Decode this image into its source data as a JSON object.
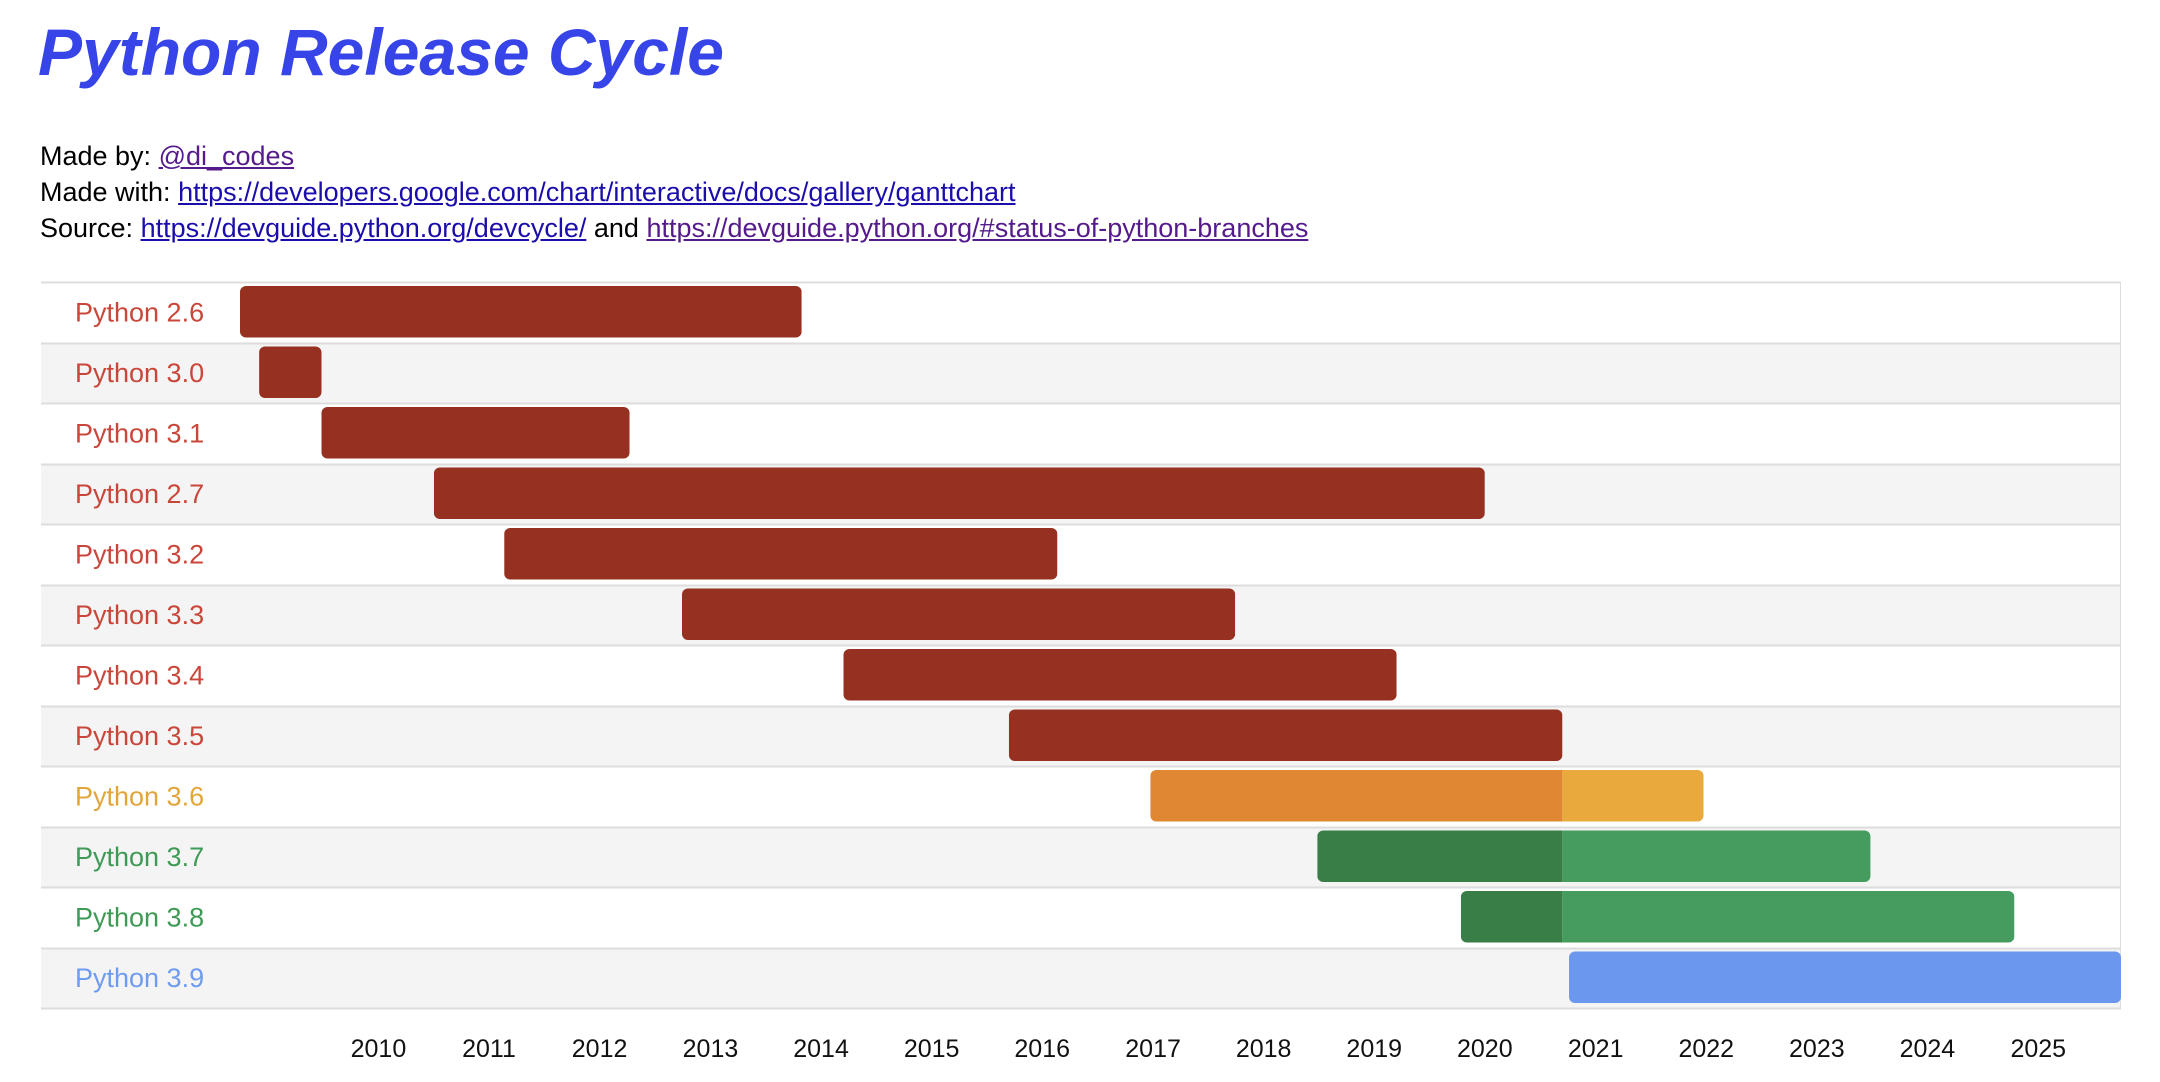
{
  "title": "Python Release Cycle",
  "meta": {
    "made_by_label": "Made by:",
    "made_by_link": "@di_codes",
    "made_with_label": "Made with:",
    "made_with_link": "https://developers.google.com/chart/interactive/docs/gallery/ganttchart",
    "source_label": "Source:",
    "source_link_1": "https://devguide.python.org/devcycle/",
    "source_and": "and",
    "source_link_2": "https://devguide.python.org/#status-of-python-branches"
  },
  "colors": {
    "eol": "#963121",
    "eol_label": "#c9473a",
    "v36_dark": "#e08733",
    "v36_light": "#e9a93c",
    "v36_label": "#e2a53a",
    "green_dark": "#397e46",
    "green_light": "#459c5e",
    "green_label": "#3f9a56",
    "blue": "#6b97ee",
    "blue_label": "#6f9bf0",
    "row_alt": "#f4f4f4",
    "grid": "#dddddd"
  },
  "chart_data": {
    "type": "gantt",
    "x_axis": {
      "ticks": [
        "2010",
        "2011",
        "2012",
        "2013",
        "2014",
        "2015",
        "2016",
        "2017",
        "2018",
        "2019",
        "2020",
        "2021",
        "2022",
        "2023",
        "2024",
        "2025"
      ],
      "range": [
        "2008-10-01",
        "2025-10-01"
      ]
    },
    "rows": [
      {
        "label": "Python 2.6",
        "start": "2008-10-01",
        "end": "2013-10-29",
        "color": "eol",
        "label_color": "eol_label"
      },
      {
        "label": "Python 3.0",
        "start": "2008-12-03",
        "end": "2009-06-27",
        "color": "eol",
        "label_color": "eol_label"
      },
      {
        "label": "Python 3.1",
        "start": "2009-06-27",
        "end": "2012-04-09",
        "color": "eol",
        "label_color": "eol_label"
      },
      {
        "label": "Python 2.7",
        "start": "2010-07-03",
        "end": "2020-01-01",
        "color": "eol",
        "label_color": "eol_label"
      },
      {
        "label": "Python 3.2",
        "start": "2011-02-20",
        "end": "2016-02-20",
        "color": "eol",
        "label_color": "eol_label"
      },
      {
        "label": "Python 3.3",
        "start": "2012-09-29",
        "end": "2017-09-29",
        "color": "eol",
        "label_color": "eol_label"
      },
      {
        "label": "Python 3.4",
        "start": "2014-03-16",
        "end": "2019-03-16",
        "color": "eol",
        "label_color": "eol_label"
      },
      {
        "label": "Python 3.5",
        "start": "2015-09-13",
        "end": "2020-09-13",
        "color": "eol",
        "label_color": "eol_label"
      },
      {
        "label": "Python 3.6",
        "start": "2016-12-23",
        "end": "2021-12-23",
        "split": "2020-09-13",
        "color": "v36_dark",
        "color2": "v36_light",
        "label_color": "v36_label"
      },
      {
        "label": "Python 3.7",
        "start": "2018-06-27",
        "end": "2023-06-27",
        "split": "2020-09-13",
        "color": "green_dark",
        "color2": "green_light",
        "label_color": "green_label"
      },
      {
        "label": "Python 3.8",
        "start": "2019-10-14",
        "end": "2024-10-14",
        "split": "2020-09-13",
        "color": "green_dark",
        "color2": "green_light",
        "label_color": "green_label"
      },
      {
        "label": "Python 3.9",
        "start": "2020-10-05",
        "end": "2025-10-01",
        "color": "blue",
        "label_color": "blue_label"
      }
    ]
  }
}
